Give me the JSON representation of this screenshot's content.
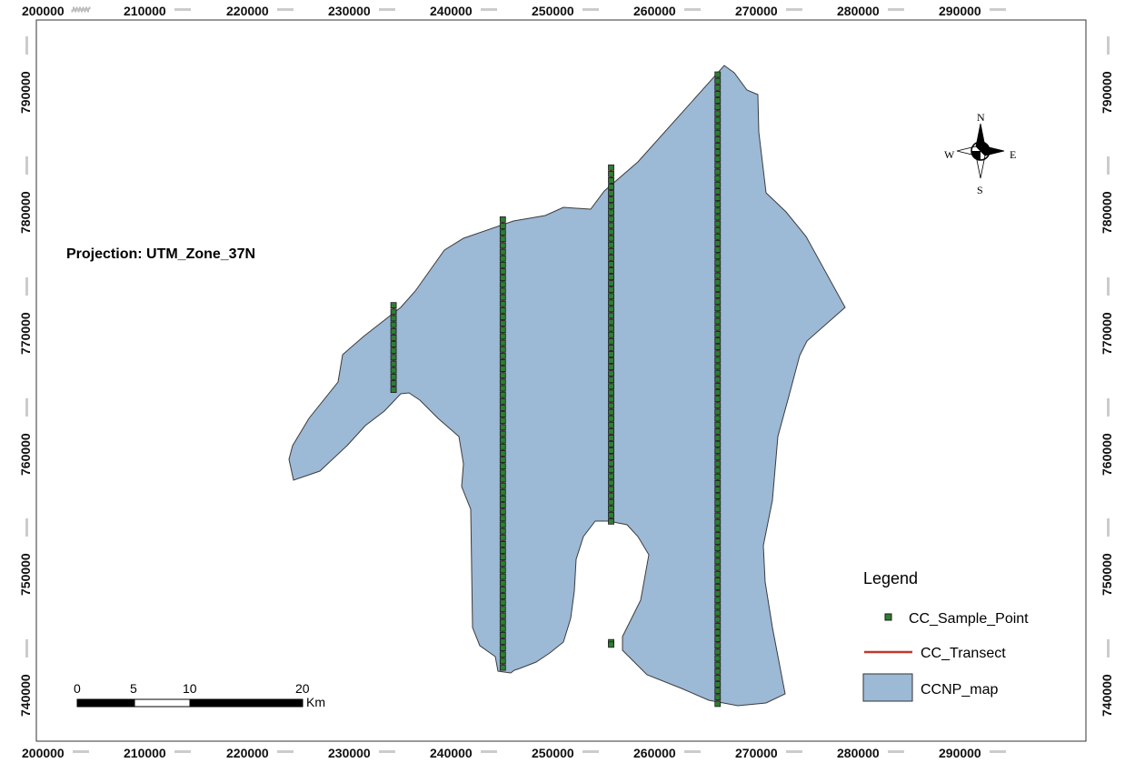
{
  "map": {
    "projection_text": "Projection: UTM_Zone_37N",
    "x_ticks": [
      "200000",
      "210000",
      "220000",
      "230000",
      "240000",
      "250000",
      "260000",
      "270000",
      "280000",
      "290000"
    ],
    "y_ticks": [
      "790000",
      "780000",
      "770000",
      "760000",
      "750000",
      "740000"
    ],
    "crs": "UTM Zone 37N",
    "x_range": [
      200000,
      294000
    ],
    "y_range": [
      737000,
      793000
    ],
    "park_fill_color": "#9cb9d6",
    "transect_color": "#c0392b",
    "sample_point_color": "#2e7d32"
  },
  "compass": {
    "n": "N",
    "s": "S",
    "e": "E",
    "w": "W"
  },
  "legend": {
    "title": "Legend",
    "items": [
      {
        "label": "CC_Sample_Point",
        "symbol": "point"
      },
      {
        "label": "CC_Transect",
        "symbol": "line"
      },
      {
        "label": "CCNP_map",
        "symbol": "polygon"
      }
    ]
  },
  "scale_bar": {
    "ticks": [
      "0",
      "5",
      "10",
      "20"
    ],
    "unit": "Km"
  },
  "transects": [
    {
      "easting": 232300,
      "northing_start": 764200,
      "northing_end": 771200
    },
    {
      "easting": 242300,
      "northing_start": 741200,
      "northing_end": 778300
    },
    {
      "easting": 252300,
      "northing_start": 753300,
      "northing_end": 782600
    },
    {
      "easting": 252300,
      "northing_start": 743100,
      "northing_end": 743300
    },
    {
      "easting": 262300,
      "northing_start": 738200,
      "northing_end": 790300
    }
  ]
}
